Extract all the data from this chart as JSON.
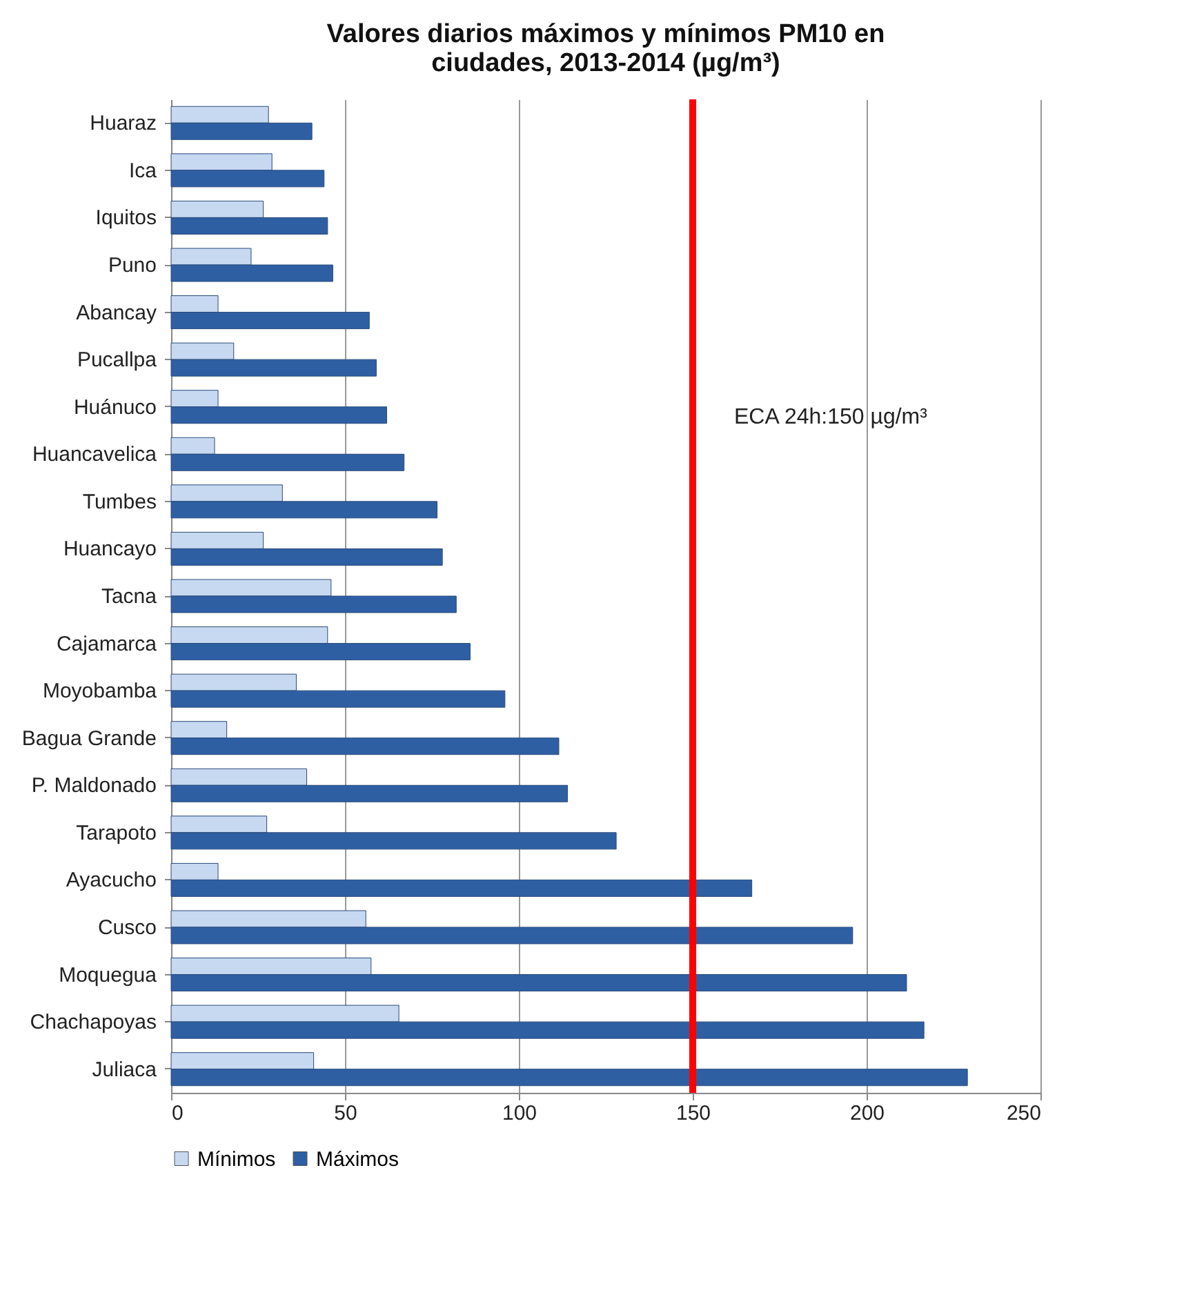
{
  "chart_data": {
    "type": "bar",
    "orientation": "horizontal",
    "title": "Valores diarios máximos y mínimos PM10 en ciudades, 2013-2014 (µg/m³)",
    "categories": [
      "Huaraz",
      "Ica",
      "Iquitos",
      "Puno",
      "Abancay",
      "Pucallpa",
      "Huánuco",
      "Huancavelica",
      "Tumbes",
      "Huancayo",
      "Tacna",
      "Cajamarca",
      "Moyobamba",
      "Bagua Grande",
      "P. Maldonado",
      "Tarapoto",
      "Ayacucho",
      "Cusco",
      "Moquegua",
      "Chachapoyas",
      "Juliaca"
    ],
    "series": [
      {
        "name": "Mínimos",
        "color": "#c6d9f1",
        "values": [
          28,
          29,
          26.5,
          23,
          13.5,
          18,
          13.5,
          12.5,
          32,
          26.5,
          46,
          45,
          36,
          16,
          39,
          27.5,
          13.5,
          56,
          57.5,
          65.5,
          41
        ]
      },
      {
        "name": "Máximos",
        "color": "#2e5fa3",
        "values": [
          40.5,
          44,
          45,
          46.5,
          57,
          59,
          62,
          67,
          76.5,
          78,
          82,
          86,
          96,
          111.5,
          114,
          128,
          167,
          196,
          211.5,
          216.5,
          229
        ]
      }
    ],
    "xlim": [
      0,
      250
    ],
    "xticks": [
      0,
      50,
      100,
      150,
      200,
      250
    ],
    "grid": "x",
    "legend": "bottom",
    "ref_lines": [
      {
        "axis": "x",
        "value": 150,
        "label": "ECA 24h:150 µg/m³",
        "color": "#ff0000"
      }
    ]
  }
}
